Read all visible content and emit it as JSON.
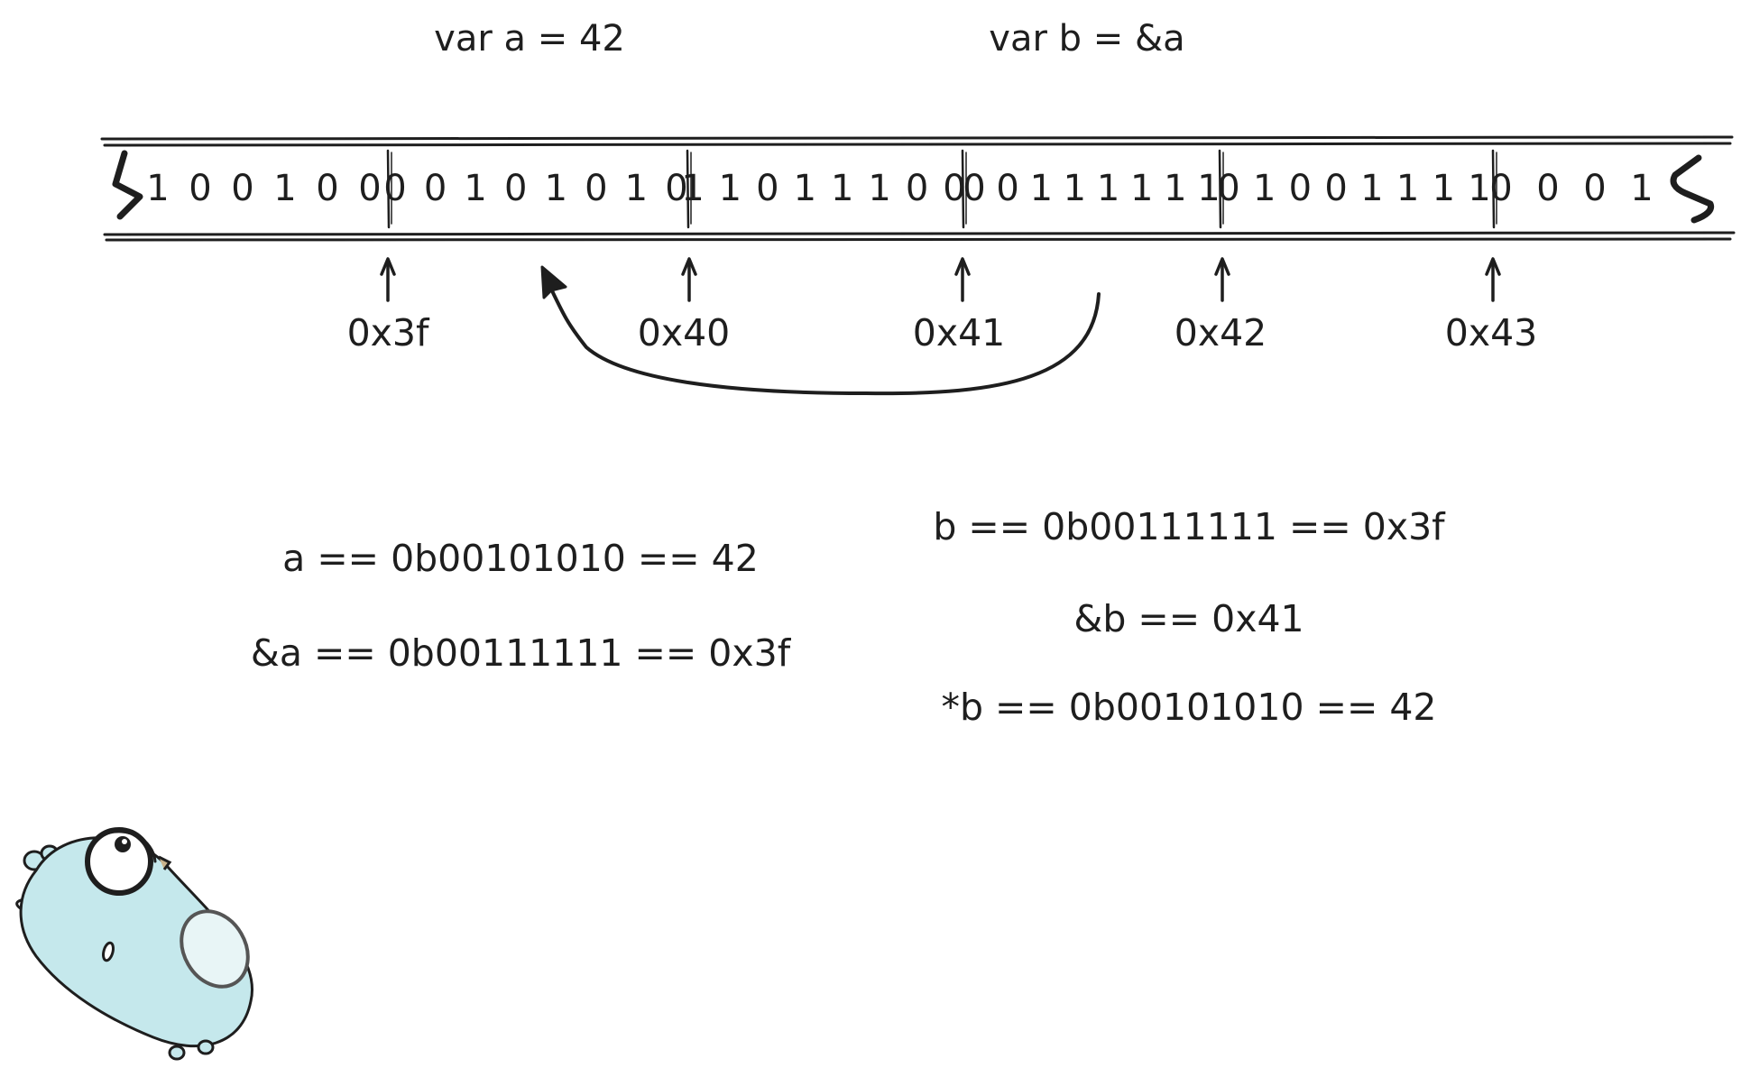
{
  "declarations": {
    "a": "var a = 42",
    "b": "var b = &a"
  },
  "memory": {
    "bytes": [
      {
        "bits": [
          "1",
          "0",
          "0",
          "1",
          "0",
          "0"
        ]
      },
      {
        "bits": [
          "0",
          "0",
          "1",
          "0",
          "1",
          "0",
          "1",
          "0"
        ]
      },
      {
        "bits": [
          "1",
          "1",
          "0",
          "1",
          "1",
          "1",
          "0",
          "0"
        ]
      },
      {
        "bits": [
          "0",
          "0",
          "1",
          "1",
          "1",
          "1",
          "1",
          "1"
        ]
      },
      {
        "bits": [
          "0",
          "1",
          "0",
          "0",
          "1",
          "1",
          "1",
          "1"
        ]
      },
      {
        "bits": [
          "0",
          "0",
          "0",
          "1"
        ]
      }
    ],
    "addresses": [
      "0x3f",
      "0x40",
      "0x41",
      "0x42",
      "0x43"
    ]
  },
  "expressions_a": [
    "a == 0b00101010 == 42",
    "&a == 0b00111111 == 0x3f"
  ],
  "expressions_b": [
    "b == 0b00111111 == 0x3f",
    "&b == 0x41",
    "*b == 0b00101010 == 42"
  ],
  "colors": {
    "ink": "#1e1e1e",
    "gopher_body": "#c5e8ec",
    "gopher_belly": "#e8f5f6"
  }
}
